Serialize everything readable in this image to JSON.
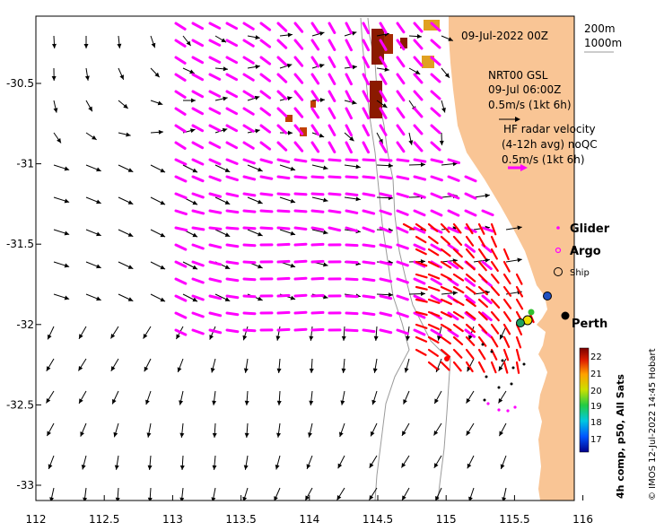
{
  "map": {
    "date_label": "09-Jul-2022 00Z",
    "depth_contours": [
      "200m",
      "1000m"
    ],
    "model_label": [
      "NRT00 GSL",
      "09-Jul 06:00Z",
      "0.5m/s (1kt 6h)"
    ],
    "hf_label": [
      "HF radar velocity",
      "(4-12h avg) noQC",
      "0.5m/s (1kt 6h)"
    ],
    "legend": {
      "glider": "Glider",
      "argo": "Argo",
      "ship": "Ship"
    },
    "place_label": "Perth",
    "credit": "© IMOS 12-Jul-2022 14:45 Hobart",
    "colorbar": {
      "title": "4h comp, p50, All Sats",
      "ticks": [
        "22",
        "21",
        "20",
        "19",
        "18",
        "17"
      ]
    },
    "x_ticks": [
      "112",
      "112.5",
      "113",
      "113.5",
      "114",
      "114.5",
      "115",
      "115.5",
      "116"
    ],
    "y_ticks": [
      "-30.5",
      "-31",
      "-31.5",
      "-32",
      "-32.5",
      "-33"
    ],
    "colors": {
      "land": "#F9C595",
      "model_arrows": "#000000",
      "hf_arrows": "#FF00FF",
      "glider": "#FF0000",
      "sst_warm": "#8B1A00",
      "contour": "#9A9A9A"
    }
  }
}
